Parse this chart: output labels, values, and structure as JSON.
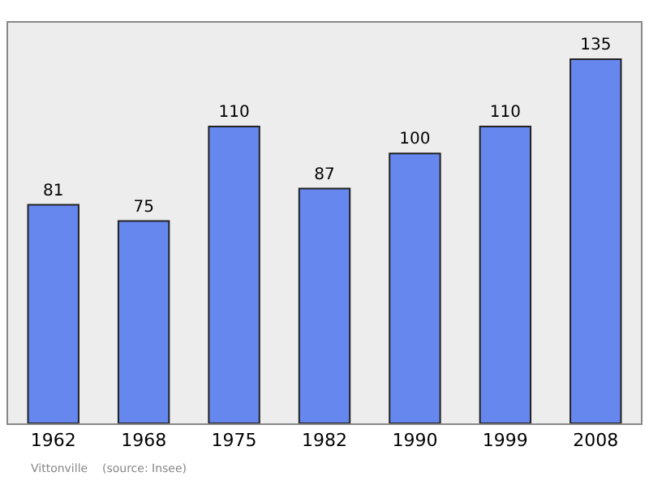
{
  "chart_data": {
    "type": "bar",
    "categories": [
      "1962",
      "1968",
      "1975",
      "1982",
      "1990",
      "1999",
      "2008"
    ],
    "values": [
      81,
      75,
      110,
      87,
      100,
      110,
      135
    ],
    "color": "#6688ee",
    "data_labels": true,
    "grid": false,
    "legend": false,
    "annotations": [
      "Vittonville    (source: Insee)"
    ]
  }
}
